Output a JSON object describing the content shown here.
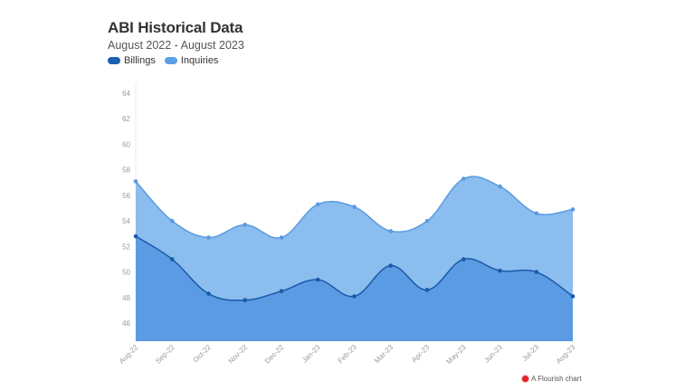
{
  "header": {
    "title": "ABI Historical Data",
    "subtitle": "August 2022 - August 2023"
  },
  "legend": [
    {
      "label": "Billings",
      "color": "#1b5fb0"
    },
    {
      "label": "Inquiries",
      "color": "#5aa0e8"
    }
  ],
  "footer": {
    "label": "A Flourish chart"
  },
  "colors": {
    "billings_fill": "#5b9be3",
    "billings_line": "#1a5aa8",
    "inquiries_fill": "#8bbdef",
    "inquiries_line": "#5a9be0",
    "axis_text": "#9a9a9a"
  },
  "chart_data": {
    "type": "area",
    "title": "ABI Historical Data",
    "subtitle": "August 2022 - August 2023",
    "xlabel": "",
    "ylabel": "",
    "categories": [
      "Aug-22",
      "Sep-22",
      "Oct-22",
      "Nov-22",
      "Dec-22",
      "Jan-23",
      "Feb-23",
      "Mar-23",
      "Apr-23",
      "May-23",
      "Jun-23",
      "Jul-23",
      "Aug-23"
    ],
    "series": [
      {
        "name": "Billings",
        "values": [
          52.8,
          51.0,
          48.3,
          47.8,
          48.5,
          49.4,
          48.1,
          50.5,
          48.6,
          51.0,
          50.1,
          50.0,
          48.1
        ]
      },
      {
        "name": "Inquiries",
        "values": [
          57.1,
          54.0,
          52.7,
          53.7,
          52.7,
          55.3,
          55.1,
          53.2,
          54.0,
          57.3,
          56.7,
          54.6,
          54.9
        ]
      }
    ],
    "yticks": [
      46,
      48,
      50,
      52,
      54,
      56,
      58,
      60,
      62,
      64
    ],
    "ylim": [
      44.6,
      65
    ],
    "grid": false,
    "legend_position": "top-left"
  }
}
